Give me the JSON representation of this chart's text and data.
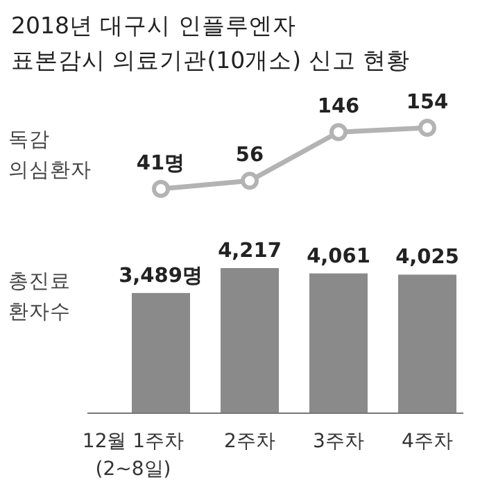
{
  "chart_data": [
    {
      "type": "line",
      "title": "2018년 대구시 인플루엔자\n표본감시 의료기관(10개소) 신고 현황",
      "ylabel": "독감\n의심환자",
      "categories": [
        null,
        null,
        null,
        null
      ],
      "tick_labels": false,
      "marker": "circle",
      "series": [
        {
          "color": "#b3b3b3",
          "values": [
            41,
            56,
            146,
            154
          ],
          "value_labels": [
            "41명",
            "56",
            "146",
            "154"
          ]
        }
      ]
    },
    {
      "type": "bar",
      "ylabel": "총진료\n환자수",
      "categories": [
        "12월 1주차\n(2~8일)",
        "2주차",
        "3주차",
        "4주차"
      ],
      "tick_labels": "x",
      "series": [
        {
          "color": "#8a8a8a",
          "values": [
            3489,
            4217,
            4061,
            4025
          ],
          "value_labels": [
            "3,489명",
            "4,217",
            "4,061",
            "4,025"
          ]
        }
      ]
    }
  ]
}
